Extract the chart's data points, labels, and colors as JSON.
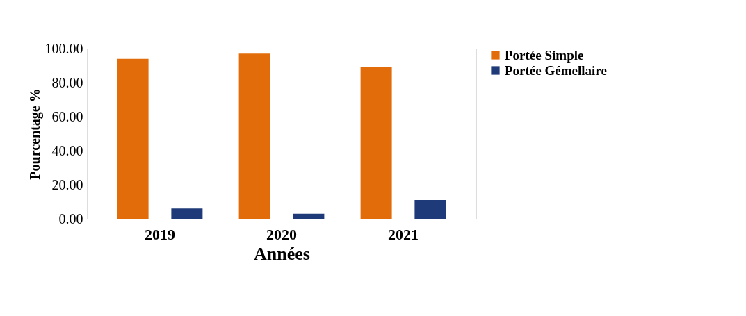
{
  "chart_data": {
    "type": "bar",
    "xlabel": "Années",
    "ylabel": "Pourcentage %",
    "categories": [
      "2019",
      "2020",
      "2021"
    ],
    "series": [
      {
        "name": "Portée Simple",
        "color": "#e36c0a",
        "values": [
          94,
          97,
          89
        ]
      },
      {
        "name": "Portée Gémellaire",
        "color": "#1f3a78",
        "values": [
          6,
          3,
          11
        ]
      }
    ],
    "ylim": [
      0,
      100
    ],
    "yticks": [
      {
        "value": 0,
        "label": "0.00"
      },
      {
        "value": 20,
        "label": "20.00"
      },
      {
        "value": 40,
        "label": "40.00"
      },
      {
        "value": 60,
        "label": "60.00"
      },
      {
        "value": 80,
        "label": "80.00"
      },
      {
        "value": 100,
        "label": "100.00"
      }
    ],
    "grid": false,
    "legend": "right"
  }
}
